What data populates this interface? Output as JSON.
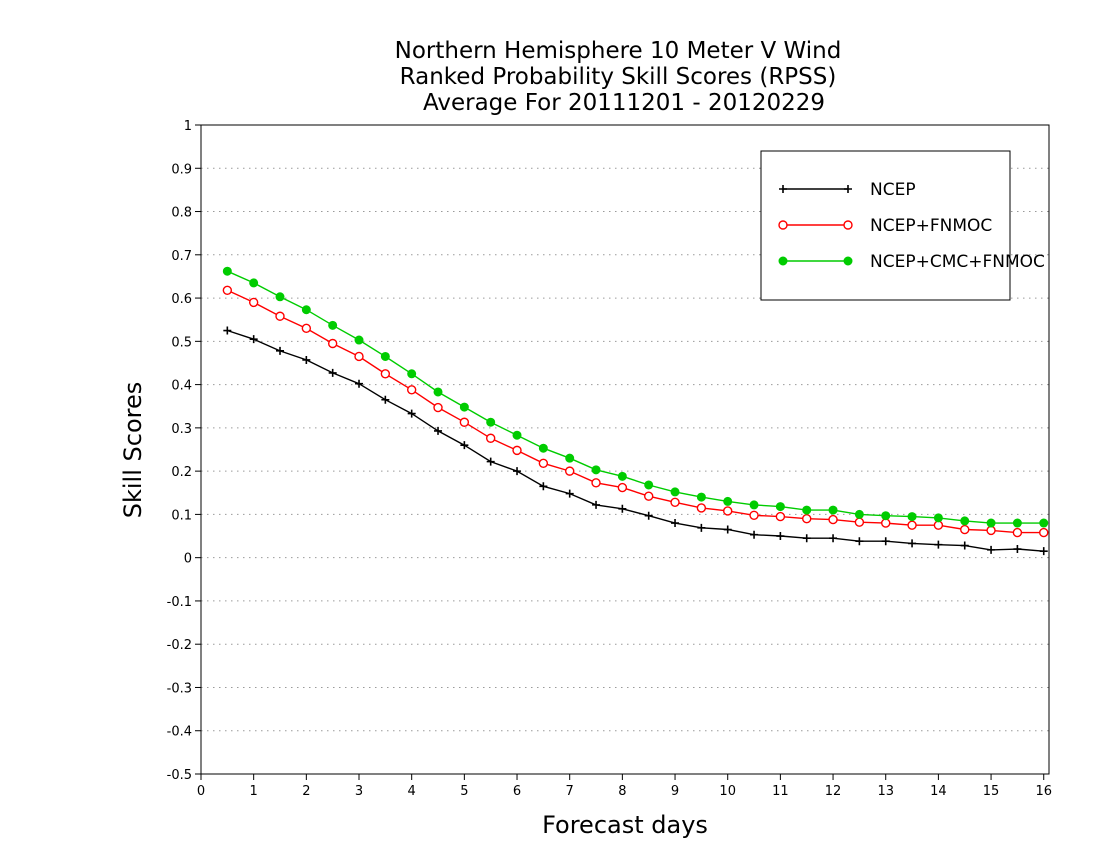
{
  "chart_data": {
    "type": "line",
    "title": [
      "Northern Hemisphere 10 Meter V Wind",
      "Ranked Probability Skill Scores (RPSS)",
      "Average For 20111201 - 20120229"
    ],
    "xlabel": "Forecast days",
    "ylabel": "Skill Scores",
    "xlim": [
      0,
      16.1
    ],
    "ylim": [
      -0.5,
      1
    ],
    "xticks": [
      "0",
      "1",
      "2",
      "3",
      "4",
      "5",
      "6",
      "7",
      "8",
      "9",
      "10",
      "11",
      "12",
      "13",
      "14",
      "15",
      "16"
    ],
    "yticks": [
      "-0.5",
      "-0.4",
      "-0.3",
      "-0.2",
      "-0.1",
      "0",
      "0.1",
      "0.2",
      "0.3",
      "0.4",
      "0.5",
      "0.6",
      "0.7",
      "0.8",
      "0.9",
      "1"
    ],
    "grid": "horizontal-dotted",
    "legend_position": "top-right",
    "x": [
      0.5,
      1,
      1.5,
      2,
      2.5,
      3,
      3.5,
      4,
      4.5,
      5,
      5.5,
      6,
      6.5,
      7,
      7.5,
      8,
      8.5,
      9,
      9.5,
      10,
      10.5,
      11,
      11.5,
      12,
      12.5,
      13,
      13.5,
      14,
      14.5,
      15,
      15.5,
      16
    ],
    "series": [
      {
        "name": "NCEP",
        "color": "#000000",
        "marker": "plus",
        "values": [
          0.525,
          0.505,
          0.478,
          0.457,
          0.427,
          0.402,
          0.365,
          0.333,
          0.293,
          0.26,
          0.222,
          0.2,
          0.165,
          0.148,
          0.122,
          0.113,
          0.097,
          0.08,
          0.069,
          0.065,
          0.053,
          0.05,
          0.045,
          0.045,
          0.038,
          0.038,
          0.033,
          0.03,
          0.028,
          0.018,
          0.02,
          0.015
        ]
      },
      {
        "name": "NCEP+FNMOC",
        "color": "#ff0000",
        "marker": "open-circle",
        "values": [
          0.618,
          0.59,
          0.558,
          0.53,
          0.495,
          0.465,
          0.425,
          0.388,
          0.347,
          0.313,
          0.276,
          0.248,
          0.218,
          0.2,
          0.173,
          0.162,
          0.142,
          0.128,
          0.115,
          0.108,
          0.098,
          0.095,
          0.09,
          0.088,
          0.082,
          0.08,
          0.075,
          0.075,
          0.065,
          0.063,
          0.058,
          0.058
        ]
      },
      {
        "name": "NCEP+CMC+FNMOC",
        "color": "#00cc00",
        "marker": "filled-circle",
        "values": [
          0.662,
          0.635,
          0.603,
          0.573,
          0.537,
          0.503,
          0.465,
          0.425,
          0.383,
          0.348,
          0.313,
          0.283,
          0.253,
          0.23,
          0.203,
          0.188,
          0.168,
          0.152,
          0.14,
          0.13,
          0.122,
          0.118,
          0.11,
          0.11,
          0.1,
          0.097,
          0.095,
          0.092,
          0.085,
          0.08,
          0.08,
          0.08
        ]
      }
    ]
  }
}
